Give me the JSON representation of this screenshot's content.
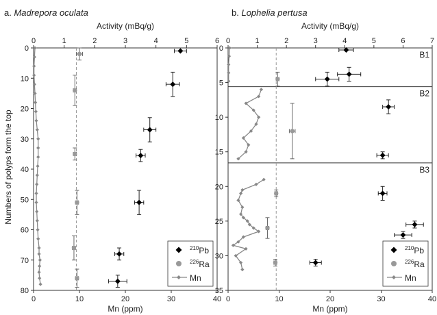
{
  "figure": {
    "ylabel": "Numbers of polyps form the top",
    "top_axis_label": "Activity (mBq/g)",
    "bottom_axis_label": "Mn (ppm)"
  },
  "chart_data": [
    {
      "type": "scatter",
      "panel_prefix": "a. ",
      "panel_species": "Madrepora oculata",
      "ylabel": "Numbers of polyps form the top",
      "activity_axis": {
        "label": "Activity (mBq/g)",
        "range": [
          0,
          6
        ],
        "ticks": [
          "0",
          "1",
          "2",
          "3",
          "4",
          "5",
          "6"
        ]
      },
      "mn_axis": {
        "label": "Mn (ppm)",
        "range": [
          0,
          40
        ],
        "ticks": [
          "0",
          "10",
          "20",
          "30",
          "40"
        ]
      },
      "y_axis": {
        "range": [
          0,
          80
        ],
        "inverted": true,
        "ticks": [
          "0",
          "10",
          "20",
          "30",
          "40",
          "50",
          "60",
          "70",
          "80"
        ]
      },
      "ra_mean_activity": 1.4,
      "series": [
        {
          "name": "210Pb",
          "label_sup": "210",
          "label_main": "Pb",
          "color": "#000000",
          "points": [
            {
              "y": 1,
              "x": 4.8,
              "xerr": 0.2,
              "yerr": 0
            },
            {
              "y": 12,
              "x": 4.55,
              "xerr": 0.22,
              "yerr": 4
            },
            {
              "y": 27,
              "x": 3.8,
              "xerr": 0.2,
              "yerr": 4
            },
            {
              "y": 35.5,
              "x": 3.5,
              "xerr": 0.15,
              "yerr": 2
            },
            {
              "y": 51,
              "x": 3.45,
              "xerr": 0.15,
              "yerr": 4
            },
            {
              "y": 68,
              "x": 2.8,
              "xerr": 0.15,
              "yerr": 2
            },
            {
              "y": 77,
              "x": 2.75,
              "xerr": 0.3,
              "yerr": 2
            }
          ]
        },
        {
          "name": "226Ra",
          "label_sup": "226",
          "label_main": "Ra",
          "color": "#888888",
          "points": [
            {
              "y": 2,
              "x": 1.5,
              "xerr": 0.1,
              "yerr": 2
            },
            {
              "y": 14,
              "x": 1.35,
              "xerr": 0.05,
              "yerr": 5
            },
            {
              "y": 35,
              "x": 1.35,
              "xerr": 0.05,
              "yerr": 2
            },
            {
              "y": 51,
              "x": 1.42,
              "xerr": 0.05,
              "yerr": 4
            },
            {
              "y": 66,
              "x": 1.32,
              "xerr": 0.05,
              "yerr": 4
            },
            {
              "y": 76,
              "x": 1.42,
              "xerr": 0.05,
              "yerr": 3
            }
          ]
        },
        {
          "name": "Mn",
          "label_main": "Mn",
          "color": "#888888",
          "x": [
            0.3,
            0.2,
            0.1,
            0.1,
            0.2,
            0.3,
            0.4,
            0.5,
            0.6,
            0.8,
            1.0,
            1.0,
            1.0,
            0.9,
            0.8,
            0.7,
            0.6,
            0.6,
            0.7,
            0.8,
            0.9,
            1.0,
            1.2,
            1.2,
            1.4,
            1.3,
            1.2,
            1.3,
            1.5
          ],
          "y": [
            0,
            3,
            6,
            9,
            12,
            15,
            18,
            21,
            24,
            27,
            30,
            33,
            36,
            39,
            42,
            45,
            48,
            51,
            54,
            57,
            60,
            63,
            66,
            68,
            70,
            72,
            74,
            76,
            78
          ]
        }
      ]
    },
    {
      "type": "scatter",
      "panel_prefix": "b. ",
      "panel_species": "Lophelia pertusa",
      "activity_axis": {
        "label": "Activity (mBq/g)",
        "range": [
          0,
          7
        ],
        "ticks": [
          "0",
          "1",
          "2",
          "3",
          "4",
          "5",
          "6",
          "7"
        ]
      },
      "mn_axis": {
        "label": "Mn (ppm)",
        "range": [
          0,
          40
        ],
        "ticks": [
          "0",
          "10",
          "20",
          "30",
          "40"
        ]
      },
      "y_axis": {
        "range": [
          0,
          35
        ],
        "inverted": true,
        "ticks": [
          "0",
          "5",
          "10",
          "15",
          "20",
          "25",
          "30",
          "35"
        ]
      },
      "ra_mean_activity": 1.65,
      "segment_labels": [
        "B1",
        "B2",
        "B3"
      ],
      "segment_breaks": [
        5.6,
        16.6
      ],
      "series": [
        {
          "name": "210Pb",
          "label_sup": "210",
          "label_main": "Pb",
          "color": "#000000",
          "points": [
            {
              "y": 0.3,
              "x": 4.05,
              "xerr": 0.25,
              "yerr": 0
            },
            {
              "y": 3.8,
              "x": 4.15,
              "xerr": 0.4,
              "yerr": 1
            },
            {
              "y": 4.5,
              "x": 3.4,
              "xerr": 0.4,
              "yerr": 1
            },
            {
              "y": 8.5,
              "x": 5.5,
              "xerr": 0.2,
              "yerr": 1
            },
            {
              "y": 15.5,
              "x": 5.3,
              "xerr": 0.2,
              "yerr": 0.5
            },
            {
              "y": 21,
              "x": 5.3,
              "xerr": 0.15,
              "yerr": 1
            },
            {
              "y": 25.5,
              "x": 6.4,
              "xerr": 0.3,
              "yerr": 0.5
            },
            {
              "y": 27,
              "x": 6.0,
              "xerr": 0.3,
              "yerr": 0.5
            },
            {
              "y": 31,
              "x": 3.0,
              "xerr": 0.2,
              "yerr": 0.5
            }
          ]
        },
        {
          "name": "226Ra",
          "label_sup": "226",
          "label_main": "Ra",
          "color": "#888888",
          "points": [
            {
              "y": 4.5,
              "x": 1.7,
              "xerr": 0.05,
              "yerr": 1
            },
            {
              "y": 12,
              "x": 2.2,
              "xerr": 0.1,
              "yerr": 4
            },
            {
              "y": 21,
              "x": 1.65,
              "xerr": 0.05,
              "yerr": 0.5
            },
            {
              "y": 26,
              "x": 1.35,
              "xerr": 0.05,
              "yerr": 1.5
            },
            {
              "y": 31,
              "x": 1.62,
              "xerr": 0.05,
              "yerr": 0.5
            }
          ]
        },
        {
          "name": "Mn",
          "label_main": "Mn",
          "color": "#888888",
          "segments": [
            {
              "x": [
                0.3,
                0.2,
                0.1,
                0.1,
                0.1
              ],
              "y": [
                0,
                1.2,
                2.4,
                3.6,
                4.8
              ]
            },
            {
              "x": [
                6.5,
                6.0,
                3.5,
                5.0,
                6.0,
                5.5,
                4.5,
                3.0,
                4.0,
                3.5,
                2.0
              ],
              "y": [
                6,
                7,
                8,
                9,
                10,
                11,
                12,
                13,
                14,
                15,
                16
              ]
            },
            {
              "x": [
                7.0,
                5.5,
                2.8,
                2.5,
                2.0,
                2.8,
                2.5,
                3.0,
                3.8,
                4.2,
                5.0,
                6.0,
                3.0,
                2.0,
                1.0,
                3.5,
                1.5,
                2.5,
                2.8
              ],
              "y": [
                19,
                19.7,
                20.5,
                21,
                22,
                23,
                24,
                24.5,
                25,
                25.5,
                26,
                26.5,
                27.3,
                28,
                28.5,
                29,
                30,
                31,
                32
              ]
            }
          ]
        }
      ]
    }
  ]
}
